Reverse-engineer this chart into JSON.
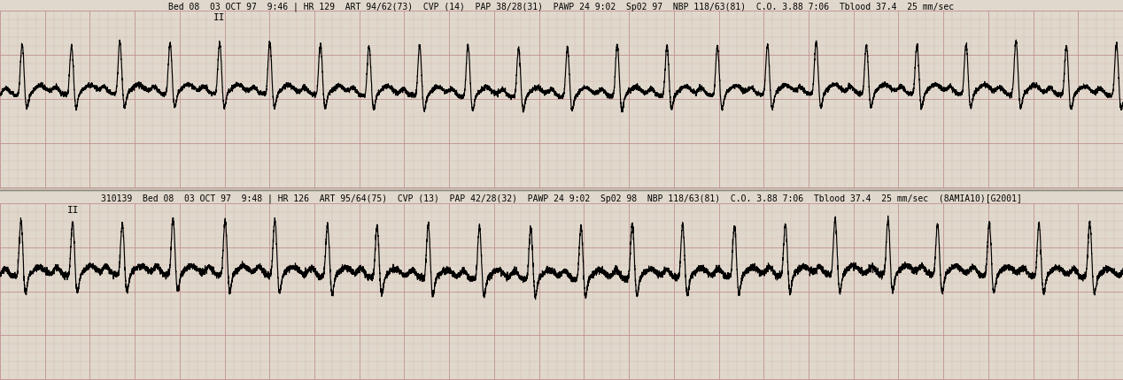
{
  "header1": "Bed 08  03 OCT 97  9:46 | HR 129  ART 94/62(73)  CVP (14)  PAP 38/28(31)  PAWP 24 9:02  Sp02 97  NBP 118/63(81)  C.O. 3.88 7:06  Tblood 37.4  25 mm/sec",
  "header2": "310139  Bed 08  03 OCT 97  9:48 | HR 126  ART 95/64(75)  CVP (13)  PAP 42/28(32)  PAWP 24 9:02  Sp02 98  NBP 118/63(81)  C.O. 3.88 7:06  Tblood 37.4  25 mm/sec  (8AMIA10)[G2001]",
  "label1": "II",
  "label2": "II",
  "bg_color": "#c8c0b0",
  "grid_minor_color": "#d4b8b0",
  "grid_major_color": "#c09090",
  "ecg_color": "#000000",
  "paper_color": "#e0d8cc",
  "header_fontsize": 7.0,
  "label_fontsize": 8
}
